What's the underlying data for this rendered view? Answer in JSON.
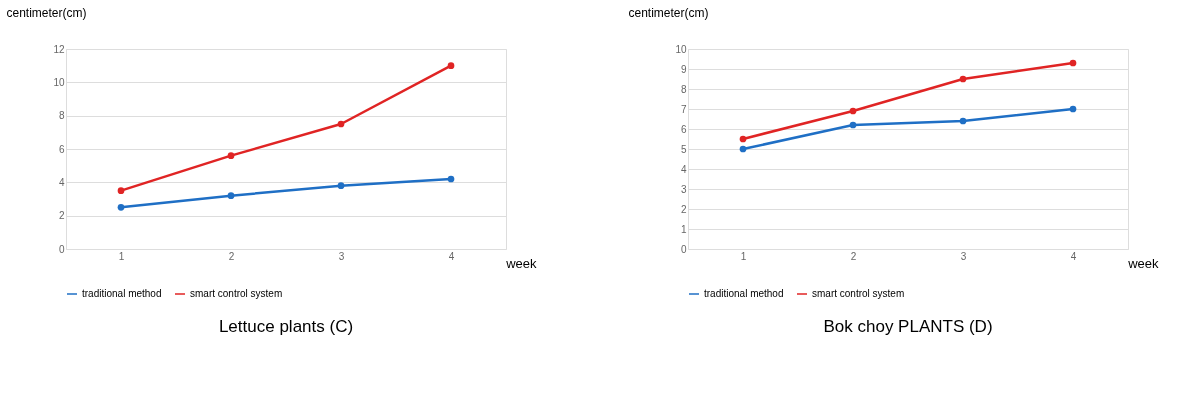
{
  "chart_data": [
    {
      "type": "line",
      "title": "Lettuce plants (C)",
      "xlabel": "week",
      "ylabel": "centimeter(cm)",
      "categories": [
        "1",
        "2",
        "3",
        "4"
      ],
      "ylim": [
        0,
        12
      ],
      "yticks": [
        0,
        2,
        4,
        6,
        8,
        10,
        12
      ],
      "grid": "y",
      "legend": "bottom",
      "marker": "circle",
      "line_style": "solid",
      "series": [
        {
          "name": "traditional method",
          "color": "#1f6fc5",
          "values": [
            2.5,
            3.2,
            3.8,
            4.2
          ]
        },
        {
          "name": "smart control system",
          "color": "#e02424",
          "values": [
            3.5,
            5.6,
            7.5,
            11.0
          ]
        }
      ]
    },
    {
      "type": "line",
      "title": "Bok choy PLANTS (D)",
      "xlabel": "week",
      "ylabel": "centimeter(cm)",
      "categories": [
        "1",
        "2",
        "3",
        "4"
      ],
      "ylim": [
        0,
        10
      ],
      "yticks": [
        0,
        1,
        2,
        3,
        4,
        5,
        6,
        7,
        8,
        9,
        10
      ],
      "grid": "y",
      "legend": "bottom",
      "marker": "circle",
      "line_style": "solid",
      "series": [
        {
          "name": "traditional method",
          "color": "#1f6fc5",
          "values": [
            5.0,
            6.2,
            6.4,
            7.0
          ]
        },
        {
          "name": "smart control system",
          "color": "#e02424",
          "values": [
            5.5,
            6.9,
            8.5,
            9.3
          ]
        }
      ]
    }
  ]
}
